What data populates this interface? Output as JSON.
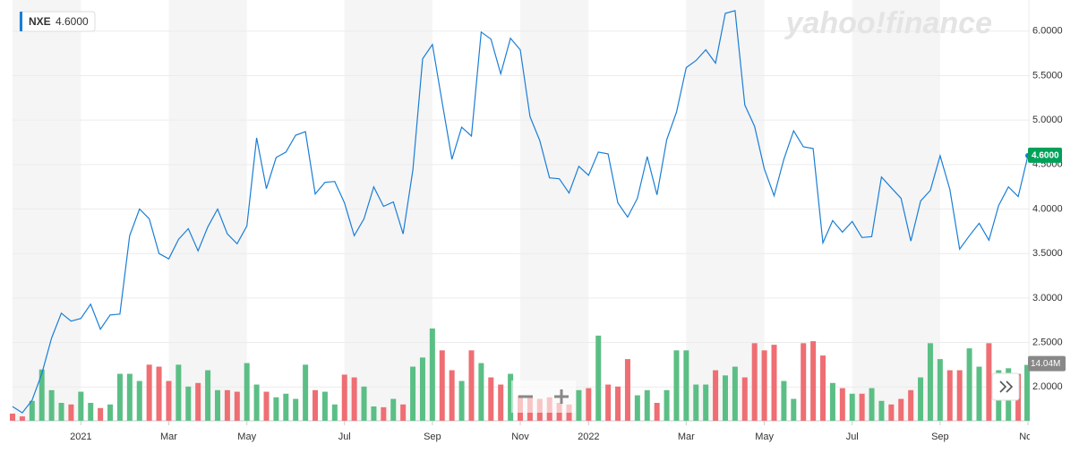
{
  "chart_data": {
    "type": "line",
    "brand": "yahoo!finance",
    "categories": [
      null,
      null,
      null,
      null,
      null,
      null,
      null,
      "2021",
      null,
      null,
      null,
      null,
      null,
      null,
      null,
      null,
      "Mar",
      null,
      null,
      null,
      null,
      null,
      null,
      null,
      "May",
      null,
      null,
      null,
      null,
      null,
      null,
      null,
      null,
      null,
      "Jul",
      null,
      null,
      null,
      null,
      null,
      null,
      null,
      null,
      "Sep",
      null,
      null,
      null,
      null,
      null,
      null,
      null,
      null,
      "Nov",
      null,
      null,
      null,
      null,
      null,
      null,
      "2022",
      null,
      null,
      null,
      null,
      null,
      null,
      null,
      null,
      null,
      "Mar",
      null,
      null,
      null,
      null,
      null,
      null,
      null,
      "May",
      null,
      null,
      null,
      null,
      null,
      null,
      null,
      null,
      "Jul",
      null,
      null,
      null,
      null,
      null,
      null,
      null,
      null,
      "Sep",
      null,
      null,
      null,
      null,
      null,
      null,
      null,
      null,
      "Nov"
    ],
    "series": [
      {
        "name": "NXE",
        "color": "#1a7ed6",
        "values": [
          1.78,
          1.71,
          1.85,
          2.15,
          2.55,
          2.83,
          2.74,
          2.77,
          2.93,
          2.65,
          2.81,
          2.82,
          3.7,
          4.0,
          3.89,
          3.5,
          3.44,
          3.66,
          3.78,
          3.53,
          3.8,
          4.0,
          3.72,
          3.61,
          3.81,
          4.8,
          4.23,
          4.58,
          4.64,
          4.83,
          4.87,
          4.17,
          4.3,
          4.31,
          4.07,
          3.7,
          3.89,
          4.25,
          4.03,
          4.08,
          3.72,
          4.44,
          5.69,
          5.85,
          5.2,
          4.56,
          4.92,
          4.82,
          5.99,
          5.91,
          5.52,
          5.92,
          5.79,
          5.04,
          4.77,
          4.35,
          4.34,
          4.18,
          4.48,
          4.38,
          4.64,
          4.62,
          4.07,
          3.91,
          4.12,
          4.59,
          4.16,
          4.78,
          5.09,
          5.59,
          5.67,
          5.79,
          5.64,
          6.2,
          6.23,
          5.17,
          4.93,
          4.45,
          4.15,
          4.56,
          4.88,
          4.7,
          4.68,
          3.62,
          3.87,
          3.74,
          3.86,
          3.68,
          3.69,
          4.36,
          4.24,
          4.12,
          3.64,
          4.09,
          4.21,
          4.6,
          4.22,
          3.55,
          3.7,
          3.84,
          3.65,
          4.04,
          4.25,
          4.14,
          4.6
        ]
      }
    ],
    "last_price_label": "4.6000",
    "last_price_color": "#00a25a",
    "ylim": [
      1.62,
      6.35
    ],
    "yticks": [
      {
        "value": 2,
        "label": "2.0000"
      },
      {
        "value": 2.5,
        "label": "2.5000"
      },
      {
        "value": 3,
        "label": "3.0000"
      },
      {
        "value": 3.5,
        "label": "3.5000"
      },
      {
        "value": 4,
        "label": "4.0000"
      },
      {
        "value": 4.5,
        "label": "4.5000"
      },
      {
        "value": 5,
        "label": "5.0000"
      },
      {
        "value": 5.5,
        "label": "5.5000"
      },
      {
        "value": 6,
        "label": "6.0000"
      }
    ],
    "grid": true,
    "volume": {
      "up_color": "#5bbf85",
      "down_color": "#ee6e73",
      "ylim": [
        0,
        27
      ],
      "values": [
        1.8,
        1.1,
        5.0,
        12.9,
        7.7,
        4.5,
        4.1,
        7.3,
        4.5,
        3.2,
        4.1,
        11.8,
        11.8,
        10.0,
        14.1,
        13.6,
        10.0,
        14.1,
        8.6,
        9.5,
        12.7,
        7.7,
        7.7,
        7.3,
        14.5,
        9.1,
        7.3,
        5.9,
        6.8,
        5.5,
        14.1,
        7.7,
        7.3,
        4.1,
        11.6,
        10.9,
        8.6,
        3.6,
        3.4,
        5.5,
        4.1,
        13.6,
        15.9,
        23.2,
        17.7,
        12.7,
        10.0,
        17.7,
        14.5,
        10.9,
        9.1,
        11.8,
        6.4,
        5.9,
        5.5,
        5.9,
        4.5,
        4.1,
        7.7,
        8.2,
        21.4,
        9.1,
        8.6,
        15.5,
        6.4,
        7.7,
        4.5,
        7.7,
        17.7,
        17.7,
        9.1,
        9.1,
        12.7,
        11.4,
        13.6,
        10.9,
        19.5,
        17.7,
        19.1,
        10.0,
        5.5,
        19.5,
        20.0,
        16.4,
        9.5,
        8.2,
        6.8,
        6.8,
        8.2,
        5.0,
        4.1,
        5.5,
        7.7,
        10.9,
        19.5,
        15.5,
        12.7,
        12.7,
        18.2,
        13.6,
        19.5,
        12.7,
        13.2,
        11.8,
        14.04
      ],
      "last_label": "14.04M"
    }
  }
}
